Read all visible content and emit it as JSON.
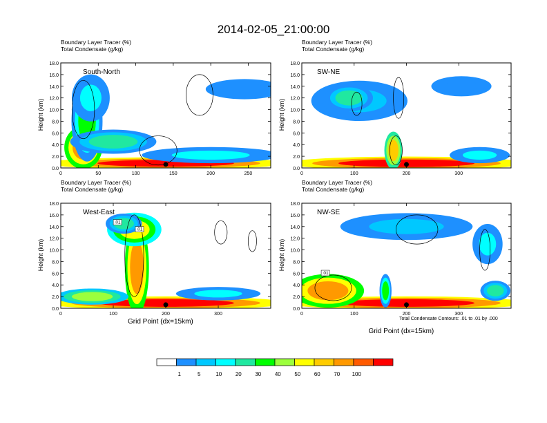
{
  "title": "2014-02-05_21:00:00",
  "colors": {
    "scale": [
      "#ffffff",
      "#1e90ff",
      "#00c8ff",
      "#00ffff",
      "#20e8a0",
      "#00ff00",
      "#9cff3c",
      "#ffff00",
      "#ffcc00",
      "#ff9900",
      "#ff5a00",
      "#ff0000"
    ],
    "contour": "#000000"
  },
  "legend": {
    "labels": [
      "1",
      "5",
      "10",
      "20",
      "30",
      "40",
      "50",
      "60",
      "70",
      "100"
    ]
  },
  "xlabel": "Grid Point (dx=15km)",
  "contour_note": "Total Condensate Contours: .01 to .01 by .000",
  "chart_data": [
    {
      "type": "heatmap",
      "name": "South-North",
      "title": "South-North",
      "label1": "Boundary Layer Tracer   (%)",
      "label2": "Total Condensate   (g/kg)",
      "ylabel": "Height (km)",
      "xlabel": "",
      "xlim": [
        0,
        280
      ],
      "ylim": [
        0,
        18
      ],
      "xticks": [
        0,
        50,
        100,
        150,
        200,
        250
      ],
      "yticks": [
        "0.0",
        "2.0",
        "4.0",
        "6.0",
        "8.0",
        "10.0",
        "12.0",
        "14.0",
        "16.0",
        "18.0"
      ],
      "marker_x": 140,
      "contour_labels": [],
      "blobs": [
        {
          "x": 140,
          "y": 0.8,
          "rx": 140,
          "ry": 0.9,
          "c": 11
        },
        {
          "x": 30,
          "y": 3.5,
          "rx": 22,
          "ry": 3.2,
          "c": 9
        },
        {
          "x": 35,
          "y": 8,
          "rx": 18,
          "ry": 6,
          "c": 5
        },
        {
          "x": 40,
          "y": 12,
          "rx": 22,
          "ry": 3.5,
          "c": 3
        },
        {
          "x": 70,
          "y": 4.5,
          "rx": 50,
          "ry": 1.8,
          "c": 4
        },
        {
          "x": 200,
          "y": 2.2,
          "rx": 80,
          "ry": 1.2,
          "c": 3
        },
        {
          "x": 245,
          "y": 13.5,
          "rx": 45,
          "ry": 1.5,
          "c": 1
        }
      ],
      "contours": [
        {
          "x": 30,
          "y": 10,
          "rx": 15,
          "ry": 5
        },
        {
          "x": 185,
          "y": 12.5,
          "rx": 18,
          "ry": 3.5
        },
        {
          "x": 130,
          "y": 3,
          "rx": 25,
          "ry": 2.5
        }
      ]
    },
    {
      "type": "heatmap",
      "name": "SW-NE",
      "title": "SW-NE",
      "label1": "Boundary Layer Tracer   (%)",
      "label2": "Total Condensate   (g/kg)",
      "ylabel": "Height (km)",
      "xlabel": "",
      "xlim": [
        0,
        400
      ],
      "ylim": [
        0,
        18
      ],
      "xticks": [
        0,
        100,
        200,
        300
      ],
      "yticks": [
        "0.0",
        "2.0",
        "4.0",
        "6.0",
        "8.0",
        "10.0",
        "12.0",
        "14.0",
        "16.0",
        "18.0"
      ],
      "marker_x": 200,
      "contour_labels": [],
      "blobs": [
        {
          "x": 200,
          "y": 0.8,
          "rx": 200,
          "ry": 1.0,
          "c": 11
        },
        {
          "x": 175,
          "y": 3,
          "rx": 15,
          "ry": 2.8,
          "c": 8
        },
        {
          "x": 110,
          "y": 11.5,
          "rx": 80,
          "ry": 3,
          "c": 2
        },
        {
          "x": 90,
          "y": 12,
          "rx": 40,
          "ry": 2,
          "c": 4
        },
        {
          "x": 305,
          "y": 14,
          "rx": 50,
          "ry": 1.5,
          "c": 1
        },
        {
          "x": 340,
          "y": 2.2,
          "rx": 50,
          "ry": 1.2,
          "c": 3
        }
      ],
      "contours": [
        {
          "x": 185,
          "y": 12,
          "rx": 10,
          "ry": 3.5
        },
        {
          "x": 105,
          "y": 11,
          "rx": 10,
          "ry": 2
        },
        {
          "x": 180,
          "y": 3,
          "rx": 12,
          "ry": 2.5
        }
      ]
    },
    {
      "type": "heatmap",
      "name": "West-East",
      "title": "West-East",
      "label1": "Boundary Layer Tracer   (%)",
      "label2": "Total Condensate   (g/kg)",
      "ylabel": "Height (km)",
      "xlabel": "",
      "xlim": [
        0,
        400
      ],
      "ylim": [
        0,
        18
      ],
      "xticks": [
        0,
        100,
        200,
        300
      ],
      "yticks": [
        "0.0",
        "2.0",
        "4.0",
        "6.0",
        "8.0",
        "10.0",
        "12.0",
        "14.0",
        "16.0",
        "18.0"
      ],
      "marker_x": 200,
      "contour_labels": [
        ".01",
        ".01"
      ],
      "blobs": [
        {
          "x": 200,
          "y": 0.9,
          "rx": 200,
          "ry": 1.0,
          "c": 11
        },
        {
          "x": 145,
          "y": 7,
          "rx": 20,
          "ry": 7,
          "c": 9
        },
        {
          "x": 140,
          "y": 13.5,
          "rx": 45,
          "ry": 2.5,
          "c": 7
        },
        {
          "x": 120,
          "y": 14.5,
          "rx": 30,
          "ry": 1.5,
          "c": 4
        },
        {
          "x": 60,
          "y": 2,
          "rx": 60,
          "ry": 1.2,
          "c": 6
        },
        {
          "x": 300,
          "y": 2.5,
          "rx": 70,
          "ry": 1.0,
          "c": 3
        }
      ],
      "contours": [
        {
          "x": 140,
          "y": 9,
          "rx": 18,
          "ry": 7
        },
        {
          "x": 305,
          "y": 13,
          "rx": 12,
          "ry": 2
        },
        {
          "x": 365,
          "y": 11.5,
          "rx": 8,
          "ry": 1.8
        }
      ]
    },
    {
      "type": "heatmap",
      "name": "NW-SE",
      "title": "NW-SE",
      "label1": "Boundary Layer Tracer   (%)",
      "label2": "Total Condensate   (g/kg)",
      "ylabel": "Height (km)",
      "xlabel": "Grid Point (dx=15km)",
      "xlim": [
        0,
        400
      ],
      "ylim": [
        0,
        18
      ],
      "xticks": [
        0,
        100,
        200,
        300
      ],
      "yticks": [
        "0.0",
        "2.0",
        "4.0",
        "6.0",
        "8.0",
        "10.0",
        "12.0",
        "14.0",
        "16.0",
        "18.0"
      ],
      "marker_x": 200,
      "contour_labels": [
        ".01"
      ],
      "blobs": [
        {
          "x": 200,
          "y": 0.9,
          "rx": 200,
          "ry": 1.0,
          "c": 11
        },
        {
          "x": 50,
          "y": 3,
          "rx": 60,
          "ry": 2.5,
          "c": 9
        },
        {
          "x": 160,
          "y": 3,
          "rx": 10,
          "ry": 2.5,
          "c": 5
        },
        {
          "x": 200,
          "y": 14,
          "rx": 110,
          "ry": 2,
          "c": 2
        },
        {
          "x": 355,
          "y": 11,
          "rx": 25,
          "ry": 3,
          "c": 3
        },
        {
          "x": 370,
          "y": 3,
          "rx": 25,
          "ry": 1.5,
          "c": 4
        }
      ],
      "contours": [
        {
          "x": 220,
          "y": 13.5,
          "rx": 40,
          "ry": 2.5
        },
        {
          "x": 350,
          "y": 10,
          "rx": 10,
          "ry": 3.5
        },
        {
          "x": 60,
          "y": 3.5,
          "rx": 35,
          "ry": 2.2
        }
      ]
    }
  ]
}
